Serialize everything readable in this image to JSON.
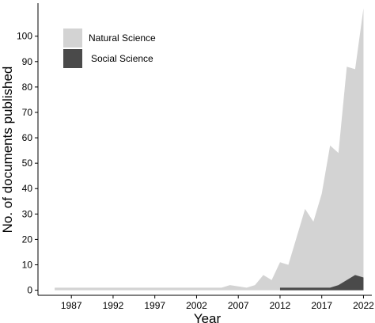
{
  "chart_data": {
    "type": "area",
    "xlabel": "Year",
    "ylabel": "No. of documents published",
    "x_ticks": [
      1987,
      1992,
      1997,
      2002,
      2007,
      2012,
      2017,
      2022
    ],
    "y_ticks": [
      0,
      10,
      20,
      30,
      40,
      50,
      60,
      70,
      80,
      90,
      100
    ],
    "xlim": [
      1983,
      2023
    ],
    "ylim": [
      -2,
      113
    ],
    "grid": false,
    "legend_position": "top-left",
    "x": [
      1985,
      1986,
      1987,
      1988,
      1989,
      1990,
      1991,
      1992,
      1993,
      1994,
      1995,
      1996,
      1997,
      1998,
      1999,
      2000,
      2001,
      2002,
      2003,
      2004,
      2005,
      2006,
      2007,
      2008,
      2009,
      2010,
      2011,
      2012,
      2013,
      2014,
      2015,
      2016,
      2017,
      2018,
      2019,
      2020,
      2021,
      2022
    ],
    "series": [
      {
        "name": "Natural Science",
        "color": "#d3d3d3",
        "values": [
          1,
          1,
          1,
          1,
          1,
          1,
          1,
          1,
          1,
          1,
          1,
          1,
          1,
          1,
          1,
          1,
          1,
          1,
          1,
          1,
          1,
          2,
          1.5,
          1,
          2,
          6,
          4,
          11,
          10,
          21,
          32,
          27,
          38,
          57,
          54,
          88,
          87,
          111
        ]
      },
      {
        "name": "Social Science",
        "color": "#4a4a4a",
        "values": [
          0,
          0,
          0,
          0,
          0,
          0,
          0,
          0,
          0,
          0,
          0,
          0,
          0,
          0,
          0,
          0,
          0,
          0,
          0,
          0,
          0,
          0,
          0,
          0,
          0,
          0,
          0,
          1,
          1,
          1,
          1,
          1,
          1,
          1,
          2,
          4,
          6,
          5
        ]
      }
    ]
  }
}
